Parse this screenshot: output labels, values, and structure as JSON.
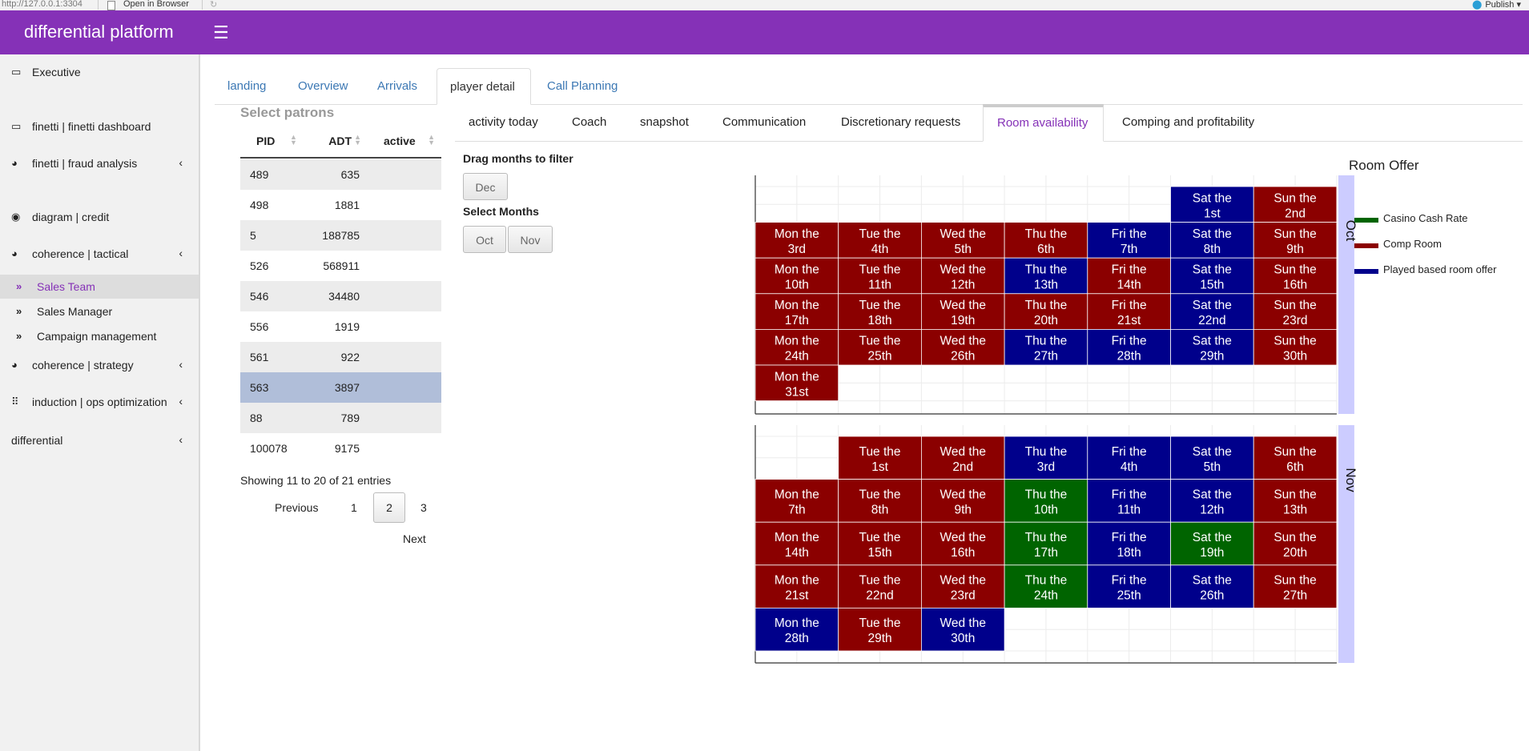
{
  "browser": {
    "url": "http://127.0.0.1:3304",
    "open_in_browser": "Open in Browser",
    "publish": "Publish"
  },
  "app": {
    "title": "differential platform"
  },
  "sidebar": {
    "items": [
      {
        "label": "Executive",
        "icon": "map-icon",
        "glyph": "▭",
        "chevron": false
      },
      {
        "label": "finetti | finetti dashboard",
        "icon": "map-icon",
        "glyph": "▭",
        "chevron": false
      },
      {
        "label": "finetti | fraud analysis",
        "icon": "dashboard-icon",
        "glyph": "◕",
        "chevron": true
      },
      {
        "label": "diagram | credit",
        "icon": "eye-icon",
        "glyph": "◉",
        "chevron": false
      },
      {
        "label": "coherence | tactical",
        "icon": "dashboard-icon",
        "glyph": "◕",
        "chevron": true
      },
      {
        "label": "coherence | strategy",
        "icon": "dashboard-icon",
        "glyph": "◕",
        "chevron": true
      },
      {
        "label": "induction | ops optimization",
        "icon": "braille-icon",
        "glyph": "⠿",
        "chevron": true
      },
      {
        "label": "differential",
        "icon": "",
        "glyph": "",
        "chevron": true
      }
    ],
    "subitems": [
      {
        "label": "Sales Team",
        "active": true
      },
      {
        "label": "Sales Manager",
        "active": false
      },
      {
        "label": "Campaign management",
        "active": false
      }
    ]
  },
  "main_tabs": [
    "landing",
    "Overview",
    "Arrivals",
    "player detail",
    "Call Planning"
  ],
  "main_tab_active": "player detail",
  "patrons": {
    "title": "Select patrons",
    "columns": [
      "PID",
      "ADT",
      "active"
    ],
    "rows": [
      {
        "pid": "489",
        "adt": "635"
      },
      {
        "pid": "498",
        "adt": "1881"
      },
      {
        "pid": "5",
        "adt": "188785"
      },
      {
        "pid": "526",
        "adt": "568911"
      },
      {
        "pid": "546",
        "adt": "34480"
      },
      {
        "pid": "556",
        "adt": "1919"
      },
      {
        "pid": "561",
        "adt": "922"
      },
      {
        "pid": "563",
        "adt": "3897"
      },
      {
        "pid": "88",
        "adt": "789"
      },
      {
        "pid": "100078",
        "adt": "9175"
      }
    ],
    "selected_pid": "563",
    "info": "Showing 11 to 20 of 21 entries",
    "pager": {
      "previous": "Previous",
      "next": "Next",
      "pages": [
        "1",
        "2",
        "3"
      ],
      "current": "2"
    }
  },
  "sub_tabs": [
    "activity today",
    "Coach",
    "snapshot",
    "Communication",
    "Discretionary requests",
    "Room availability",
    "Comping and profitability"
  ],
  "sub_tab_active": "Room availability",
  "filter": {
    "drag_label": "Drag months to filter",
    "drag_buttons": [
      "Dec"
    ],
    "select_label": "Select Months",
    "select_buttons": [
      "Oct",
      "Nov"
    ]
  },
  "chart_data": {
    "type": "heatmap",
    "title": "Room Offer",
    "legend": [
      {
        "name": "Casino Cash Rate",
        "color": "#006400"
      },
      {
        "name": "Comp Room",
        "color": "#8b0000"
      },
      {
        "name": "Played based room offer",
        "color": "#00008b"
      }
    ],
    "weekdays": [
      "Mon",
      "Tue",
      "Wed",
      "Thu",
      "Fri",
      "Sat",
      "Sun"
    ],
    "months": [
      {
        "name": "Oct",
        "first_weekday": "Sat",
        "days": 31,
        "offers": [
          "Played based room offer",
          "Comp Room",
          "Comp Room",
          "Comp Room",
          "Comp Room",
          "Comp Room",
          "Played based room offer",
          "Played based room offer",
          "Comp Room",
          "Comp Room",
          "Comp Room",
          "Comp Room",
          "Played based room offer",
          "Comp Room",
          "Played based room offer",
          "Comp Room",
          "Comp Room",
          "Comp Room",
          "Comp Room",
          "Comp Room",
          "Comp Room",
          "Played based room offer",
          "Comp Room",
          "Comp Room",
          "Comp Room",
          "Comp Room",
          "Played based room offer",
          "Played based room offer",
          "Played based room offer",
          "Comp Room",
          "Comp Room"
        ]
      },
      {
        "name": "Nov",
        "first_weekday": "Tue",
        "days": 30,
        "offers": [
          "Comp Room",
          "Comp Room",
          "Played based room offer",
          "Played based room offer",
          "Played based room offer",
          "Comp Room",
          "Comp Room",
          "Comp Room",
          "Comp Room",
          "Casino Cash Rate",
          "Played based room offer",
          "Played based room offer",
          "Comp Room",
          "Comp Room",
          "Comp Room",
          "Comp Room",
          "Casino Cash Rate",
          "Played based room offer",
          "Casino Cash Rate",
          "Comp Room",
          "Comp Room",
          "Comp Room",
          "Comp Room",
          "Casino Cash Rate",
          "Played based room offer",
          "Played based room offer",
          "Comp Room",
          "Played based room offer",
          "Comp Room",
          "Played based room offer"
        ]
      }
    ]
  }
}
